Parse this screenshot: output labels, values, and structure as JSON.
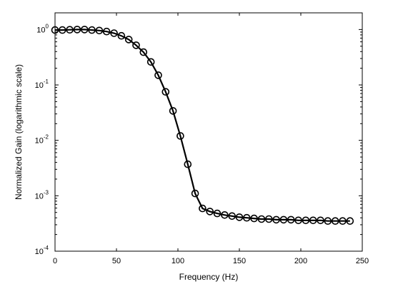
{
  "chart_data": {
    "type": "line",
    "title": "",
    "xlabel": "Frequency (Hz)",
    "ylabel": "Normalized Gain (logarithmic scale)",
    "xlim": [
      0,
      250
    ],
    "ylim": [
      0.0001,
      2
    ],
    "yscale": "log",
    "grid": false,
    "legend": "none",
    "x_ticks": [
      0,
      50,
      100,
      150,
      200,
      250
    ],
    "x_tick_labels": [
      "0",
      "50",
      "100",
      "150",
      "200",
      "250"
    ],
    "y_ticks": [
      {
        "value": 1,
        "base": "10",
        "exp": "0"
      },
      {
        "value": 0.1,
        "base": "10",
        "exp": "-1"
      },
      {
        "value": 0.01,
        "base": "10",
        "exp": "-2"
      },
      {
        "value": 0.001,
        "base": "10",
        "exp": "-3"
      },
      {
        "value": 0.0001,
        "base": "10",
        "exp": "-4"
      }
    ],
    "series": [
      {
        "marker": "circle",
        "line_color": "#000000",
        "x": [
          0,
          6,
          12,
          18,
          24,
          30,
          36,
          42,
          48,
          54,
          60,
          66,
          72,
          78,
          84,
          90,
          96,
          102,
          108,
          114,
          120,
          126,
          132,
          138,
          144,
          150,
          156,
          162,
          168,
          174,
          180,
          186,
          192,
          198,
          204,
          210,
          216,
          222,
          228,
          234,
          240
        ],
        "y": [
          0.98,
          0.98,
          0.99,
          1.0,
          1.0,
          0.98,
          0.96,
          0.92,
          0.86,
          0.77,
          0.66,
          0.52,
          0.39,
          0.26,
          0.15,
          0.075,
          0.034,
          0.012,
          0.0037,
          0.0011,
          0.00059,
          0.00052,
          0.00048,
          0.00045,
          0.00043,
          0.00041,
          0.0004,
          0.00039,
          0.00038,
          0.00038,
          0.00037,
          0.00037,
          0.00037,
          0.00036,
          0.00036,
          0.00036,
          0.00036,
          0.00035,
          0.00035,
          0.00035,
          0.00035
        ]
      }
    ]
  }
}
